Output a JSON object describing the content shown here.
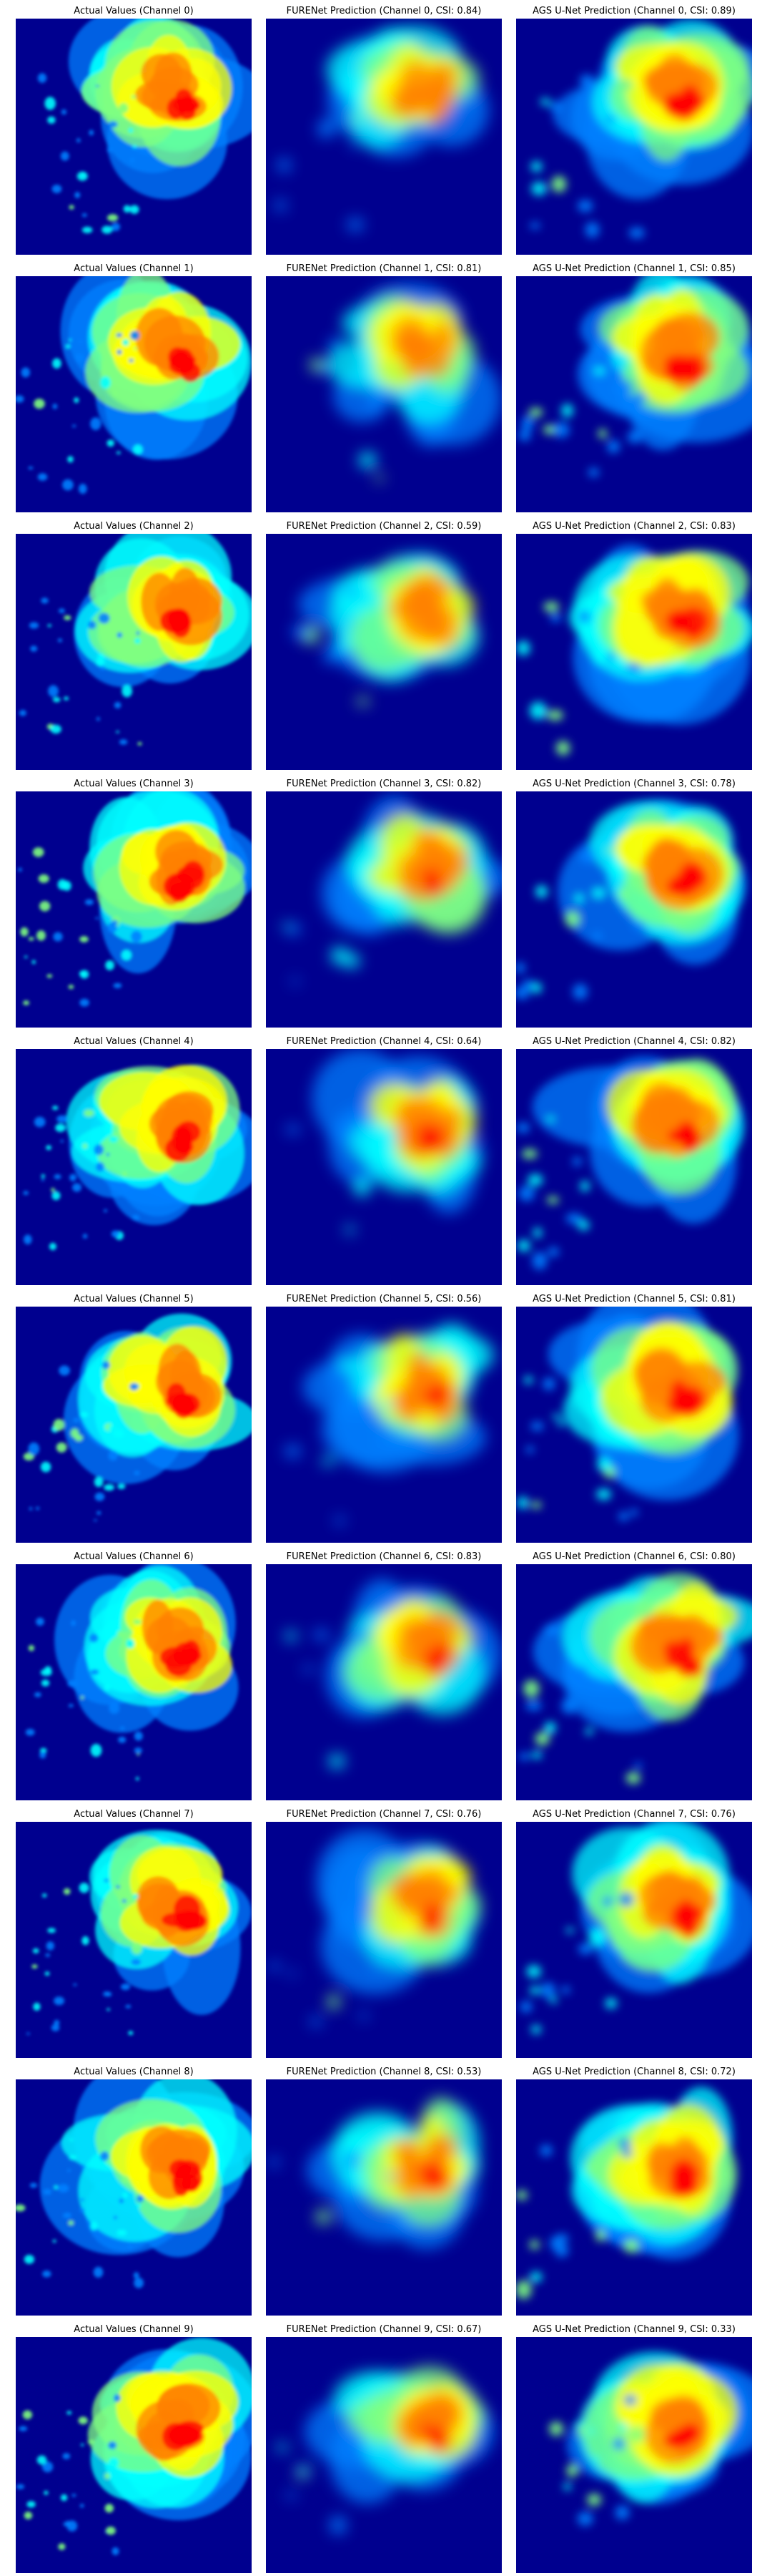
{
  "colors": {
    "background": "#00008f",
    "palette": [
      "#00008f",
      "#0000ff",
      "#0080ff",
      "#00ffff",
      "#80ff80",
      "#ffff00",
      "#ff8000",
      "#ff0000",
      "#800000"
    ]
  },
  "columns": [
    "actual",
    "furenet",
    "ags_unet"
  ],
  "rows": [
    {
      "channel": 0,
      "titles": [
        "Actual Values (Channel 0)",
        "FURENet Prediction (Channel 0, CSI: 0.84)",
        "AGS U-Net Prediction (Channel 0, CSI: 0.89)"
      ],
      "csi": [
        null,
        0.84,
        0.89
      ]
    },
    {
      "channel": 1,
      "titles": [
        "Actual Values (Channel 1)",
        "FURENet Prediction (Channel 1, CSI: 0.81)",
        "AGS U-Net Prediction (Channel 1, CSI: 0.85)"
      ],
      "csi": [
        null,
        0.81,
        0.85
      ]
    },
    {
      "channel": 2,
      "titles": [
        "Actual Values (Channel 2)",
        "FURENet Prediction (Channel 2, CSI: 0.59)",
        "AGS U-Net Prediction (Channel 2, CSI: 0.83)"
      ],
      "csi": [
        null,
        0.59,
        0.83
      ]
    },
    {
      "channel": 3,
      "titles": [
        "Actual Values (Channel 3)",
        "FURENet Prediction (Channel 3, CSI: 0.82)",
        "AGS U-Net Prediction (Channel 3, CSI: 0.78)"
      ],
      "csi": [
        null,
        0.82,
        0.78
      ]
    },
    {
      "channel": 4,
      "titles": [
        "Actual Values (Channel 4)",
        "FURENet Prediction (Channel 4, CSI: 0.64)",
        "AGS U-Net Prediction (Channel 4, CSI: 0.82)"
      ],
      "csi": [
        null,
        0.64,
        0.82
      ]
    },
    {
      "channel": 5,
      "titles": [
        "Actual Values (Channel 5)",
        "FURENet Prediction (Channel 5, CSI: 0.56)",
        "AGS U-Net Prediction (Channel 5, CSI: 0.81)"
      ],
      "csi": [
        null,
        0.56,
        0.81
      ]
    },
    {
      "channel": 6,
      "titles": [
        "Actual Values (Channel 6)",
        "FURENet Prediction (Channel 6, CSI: 0.83)",
        "AGS U-Net Prediction (Channel 6, CSI: 0.80)"
      ],
      "csi": [
        null,
        0.83,
        0.8
      ]
    },
    {
      "channel": 7,
      "titles": [
        "Actual Values (Channel 7)",
        "FURENet Prediction (Channel 7, CSI: 0.76)",
        "AGS U-Net Prediction (Channel 7, CSI: 0.76)"
      ],
      "csi": [
        null,
        0.76,
        0.76
      ]
    },
    {
      "channel": 8,
      "titles": [
        "Actual Values (Channel 8)",
        "FURENet Prediction (Channel 8, CSI: 0.53)",
        "AGS U-Net Prediction (Channel 8, CSI: 0.72)"
      ],
      "csi": [
        null,
        0.53,
        0.72
      ]
    },
    {
      "channel": 9,
      "titles": [
        "Actual Values (Channel 9)",
        "FURENet Prediction (Channel 9, CSI: 0.67)",
        "AGS U-Net Prediction (Channel 9, CSI: 0.33)"
      ],
      "csi": [
        null,
        0.67,
        0.33
      ]
    }
  ]
}
